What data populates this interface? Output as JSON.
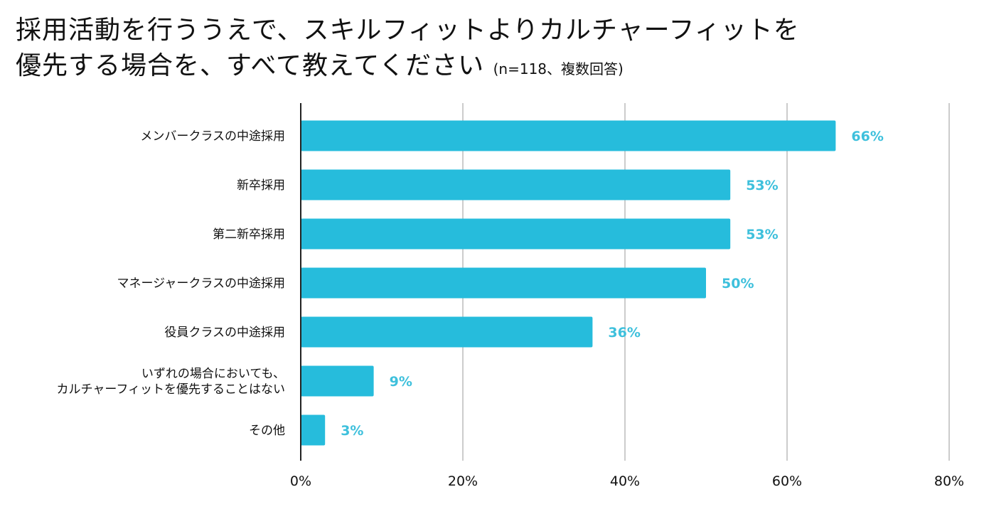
{
  "title": {
    "line1": "採用活動を行ううえで、スキルフィットよりカルチャーフィットを",
    "line2": "優先する場合を、すべて教えてください",
    "note": "(n=118、複数回答)"
  },
  "colors": {
    "bar": "#26bcdc",
    "value_label": "#3ec0dc",
    "grid": "#cccccc",
    "axis": "#222222"
  },
  "chart_data": {
    "type": "bar",
    "orientation": "horizontal",
    "categories": [
      [
        "メンバークラスの中途採用"
      ],
      [
        "新卒採用"
      ],
      [
        "第二新卒採用"
      ],
      [
        "マネージャークラスの中途採用"
      ],
      [
        "役員クラスの中途採用"
      ],
      [
        "いずれの場合においても、",
        "カルチャーフィットを優先することはない"
      ],
      [
        "その他"
      ]
    ],
    "values": [
      66,
      53,
      53,
      50,
      36,
      9,
      3
    ],
    "value_labels": [
      "66%",
      "53%",
      "53%",
      "50%",
      "36%",
      "9%",
      "3%"
    ],
    "xlim": [
      0,
      80
    ],
    "xticks": [
      0,
      20,
      40,
      60,
      80
    ],
    "xtick_labels": [
      "0%",
      "20%",
      "40%",
      "60%",
      "80%"
    ],
    "grid": true
  }
}
